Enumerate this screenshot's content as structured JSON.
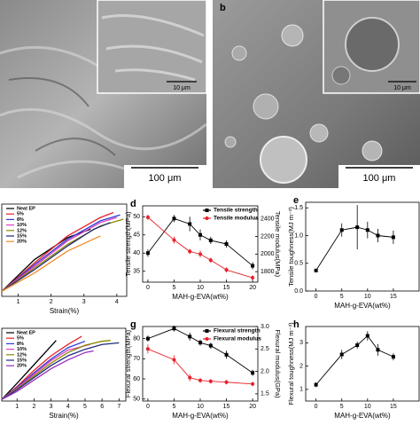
{
  "images": [
    {
      "scale_inset": "10 μm",
      "scale_main": "100 μm"
    },
    {
      "label": "b",
      "scale_inset": "10 μm",
      "scale_main": "100 μm"
    }
  ],
  "chart_data": [
    {
      "type": "line",
      "x_label": "Strain(%)",
      "xlim": [
        0.5,
        4.3
      ],
      "xticks": [
        1,
        2,
        3,
        4
      ],
      "ylim": [
        0,
        55
      ],
      "legend": "upper left",
      "series": [
        {
          "name": "Neat EP",
          "color": "#000000",
          "x": [
            0.5,
            1.5,
            2.5,
            3.2
          ],
          "values": [
            3,
            22,
            35,
            40
          ]
        },
        {
          "name": "5%",
          "color": "#e8202a",
          "x": [
            0.5,
            1.5,
            2.5,
            3.5,
            3.9
          ],
          "values": [
            3,
            20,
            36,
            47,
            50
          ]
        },
        {
          "name": "8%",
          "color": "#2e3bd6",
          "x": [
            0.5,
            1.5,
            2.5,
            3.5,
            4.1
          ],
          "values": [
            3,
            19,
            34,
            45,
            48.5
          ]
        },
        {
          "name": "10%",
          "color": "#e040c0",
          "x": [
            0.5,
            1.5,
            2.5,
            3.5,
            4.0
          ],
          "values": [
            3,
            18,
            33,
            44,
            47
          ]
        },
        {
          "name": "12%",
          "color": "#8a8a00",
          "x": [
            0.5,
            1.5,
            2.5,
            3.5,
            4.2
          ],
          "values": [
            3,
            17,
            31,
            42,
            46
          ]
        },
        {
          "name": "15%",
          "color": "#1f2a7a",
          "x": [
            0.5,
            1.5,
            2.5,
            3.3,
            3.8
          ],
          "values": [
            3,
            16,
            30,
            40,
            44
          ]
        },
        {
          "name": "20%",
          "color": "#f08a24",
          "x": [
            0.5,
            1.5,
            2.5,
            3.5
          ],
          "values": [
            3,
            14,
            27,
            36
          ]
        }
      ]
    },
    {
      "type": "line",
      "label": "d",
      "x_label": "MAH-g-EVA(wt%)",
      "y_label": "Tensile strength(MPa)",
      "y2_label": "Tensile modulus(MPa)",
      "xlim": [
        -1,
        21
      ],
      "xticks": [
        0,
        5,
        10,
        15,
        20
      ],
      "ylim": [
        32,
        53
      ],
      "yticks": [
        35,
        40,
        45,
        50
      ],
      "y2lim": [
        1680,
        2550
      ],
      "y2ticks": [
        1800,
        2000,
        2200,
        2400
      ],
      "legend": "upper right",
      "series": [
        {
          "name": "Tensile strength",
          "color": "#000000",
          "marker": "square",
          "x": [
            0,
            5,
            8,
            10,
            12,
            15,
            20
          ],
          "values": [
            40,
            49.5,
            48,
            45,
            43.5,
            42.5,
            36.5
          ],
          "errors": [
            1,
            1,
            2,
            1.5,
            1,
            1,
            1
          ]
        },
        {
          "name": "Tensile modulus",
          "color": "#e8202a",
          "marker": "circle",
          "axis": "y2",
          "x": [
            0,
            5,
            8,
            10,
            12,
            15,
            20
          ],
          "values": [
            2420,
            2160,
            2030,
            2000,
            1930,
            1820,
            1730
          ],
          "errors": [
            30,
            40,
            30,
            40,
            30,
            30,
            30
          ]
        }
      ]
    },
    {
      "type": "line",
      "label": "e",
      "x_label": "MAH-g-EVA(wt%)",
      "y_label": "Tensile toughness(MJ m⁻³)",
      "xlim": [
        -2,
        20
      ],
      "xticks": [
        0,
        5,
        10,
        15
      ],
      "ylim": [
        0,
        1.6
      ],
      "yticks": [
        {
          "value": 0,
          "label": "0.0"
        },
        0.5,
        {
          "value": 1,
          "label": "1.0"
        },
        1.5
      ],
      "series": [
        {
          "color": "#000000",
          "marker": "square",
          "x": [
            0,
            5,
            8,
            10,
            12,
            15
          ],
          "values": [
            0.37,
            1.1,
            1.15,
            1.1,
            1.0,
            0.97
          ],
          "errors": [
            0.03,
            0.12,
            0.4,
            0.15,
            0.12,
            0.12
          ]
        }
      ]
    },
    {
      "type": "line",
      "x_label": "Strain(%)",
      "xlim": [
        0.1,
        7.4
      ],
      "xticks": [
        1,
        2,
        3,
        4,
        5,
        6,
        7
      ],
      "ylim": [
        0,
        90
      ],
      "legend": "upper left",
      "series": [
        {
          "name": "Neat EP",
          "color": "#000000",
          "x": [
            0.1,
            1,
            2,
            3,
            3.3
          ],
          "values": [
            2,
            22,
            45,
            68,
            75
          ]
        },
        {
          "name": "5%",
          "color": "#e8202a",
          "x": [
            0.1,
            1,
            2,
            3,
            4,
            4.8
          ],
          "values": [
            2,
            18,
            38,
            56,
            70,
            80
          ]
        },
        {
          "name": "8%",
          "color": "#2e3bd6",
          "x": [
            0.1,
            1,
            2,
            3,
            4,
            5
          ],
          "values": [
            2,
            17,
            35,
            52,
            66,
            74
          ]
        },
        {
          "name": "10%",
          "color": "#e040c0",
          "x": [
            0.1,
            1,
            2,
            3,
            4,
            5.3
          ],
          "values": [
            2,
            16,
            33,
            50,
            63,
            70
          ]
        },
        {
          "name": "12%",
          "color": "#8a8a00",
          "x": [
            0.1,
            1,
            2,
            3,
            4,
            5,
            6,
            6.5
          ],
          "values": [
            2,
            15,
            31,
            47,
            60,
            69,
            74,
            75
          ]
        },
        {
          "name": "15%",
          "color": "#1f2a7a",
          "x": [
            0.1,
            1,
            2,
            3,
            4,
            5,
            6,
            7
          ],
          "values": [
            2,
            14,
            29,
            44,
            56,
            64,
            70,
            72
          ]
        },
        {
          "name": "20%",
          "color": "#9a2bbf",
          "x": [
            0.1,
            1,
            2,
            3,
            4,
            5,
            5.5
          ],
          "values": [
            2,
            12,
            26,
            40,
            51,
            60,
            62
          ]
        }
      ]
    },
    {
      "type": "line",
      "label": "g",
      "x_label": "MAH-g-EVA(wt%)",
      "y_label": "Flexural strength(MPa)",
      "y2_label": "Flexural modulus(GPa)",
      "xlim": [
        -1,
        21
      ],
      "xticks": [
        0,
        5,
        10,
        15,
        20
      ],
      "ylim": [
        49,
        86
      ],
      "yticks": [
        50,
        60,
        70,
        80
      ],
      "y2lim": [
        1.34,
        3.0
      ],
      "y2ticks": [
        1.5,
        {
          "value": 2,
          "label": "2.0"
        },
        2.5,
        {
          "value": 3,
          "label": "3.0"
        }
      ],
      "legend": "upper right",
      "series": [
        {
          "name": "Flexural strength",
          "color": "#000000",
          "marker": "square",
          "x": [
            0,
            5,
            8,
            10,
            12,
            15,
            20
          ],
          "values": [
            80,
            85,
            81,
            78,
            76.5,
            72,
            63
          ],
          "errors": [
            1.5,
            1.5,
            2,
            1.5,
            1.5,
            2,
            1.5
          ]
        },
        {
          "name": "Flexural modulus",
          "color": "#e8202a",
          "marker": "circle",
          "axis": "y2",
          "x": [
            0,
            5,
            8,
            10,
            12,
            15,
            20
          ],
          "values": [
            2.5,
            2.26,
            1.86,
            1.8,
            1.78,
            1.76,
            1.72
          ],
          "errors": [
            0.1,
            0.1,
            0.08,
            0.05,
            0.05,
            0.05,
            0.05
          ]
        }
      ]
    },
    {
      "type": "line",
      "label": "h",
      "x_label": "MAH-g-EVA(wt%)",
      "y_label": "Flexural toughness(MJ m⁻³)",
      "xlim": [
        -2,
        20
      ],
      "xticks": [
        0,
        5,
        10,
        15
      ],
      "ylim": [
        0.5,
        3.7
      ],
      "yticks": [
        1,
        2,
        3
      ],
      "series": [
        {
          "color": "#000000",
          "marker": "square",
          "x": [
            0,
            5,
            8,
            10,
            12,
            15
          ],
          "values": [
            1.2,
            2.5,
            2.9,
            3.3,
            2.7,
            2.4
          ],
          "errors": [
            0.1,
            0.2,
            0.15,
            0.2,
            0.25,
            0.15
          ]
        }
      ]
    }
  ]
}
